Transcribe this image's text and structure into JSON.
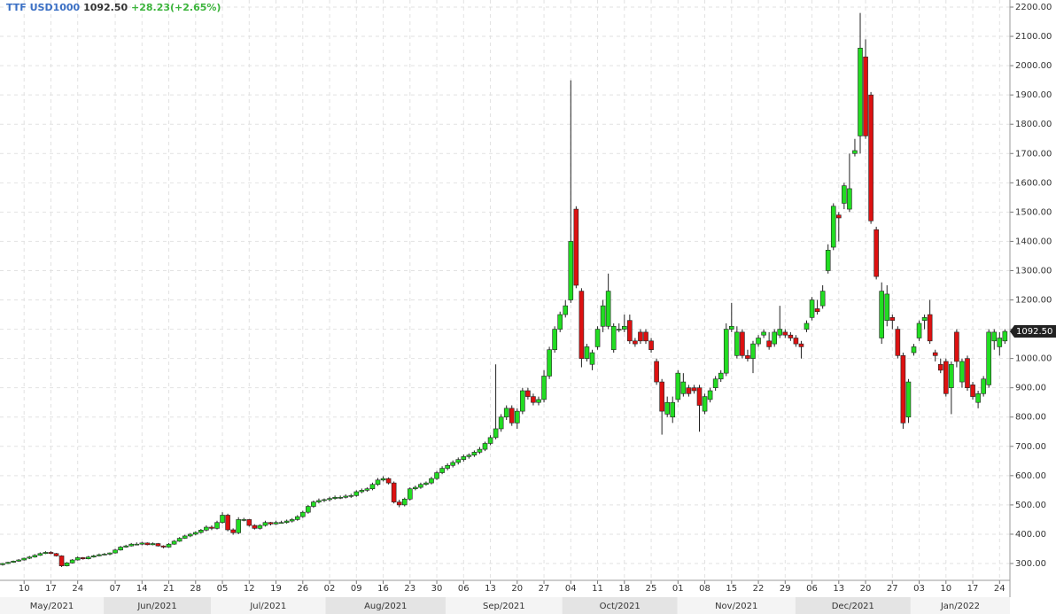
{
  "chart_data": {
    "type": "candlestick",
    "title": "TTF USD1000",
    "last_price": {
      "value": 1092.5,
      "label": "1092.50"
    },
    "change": "+28.23(+2.65%)",
    "up_color": "#22dd22",
    "down_color": "#dd1111",
    "grid": true,
    "ylim": [
      240,
      2230
    ],
    "yticks": [
      {
        "value": 300,
        "label": "300.00"
      },
      {
        "value": 400,
        "label": "400.00"
      },
      {
        "value": 500,
        "label": "500.00"
      },
      {
        "value": 600,
        "label": "600.00"
      },
      {
        "value": 700,
        "label": "700.00"
      },
      {
        "value": 800,
        "label": "800.00"
      },
      {
        "value": 900,
        "label": "900.00"
      },
      {
        "value": 1000,
        "label": "1000.00"
      },
      {
        "value": 1100,
        "label": "1100.00"
      },
      {
        "value": 1200,
        "label": "1200.00"
      },
      {
        "value": 1300,
        "label": "1300.00"
      },
      {
        "value": 1400,
        "label": "1400.00"
      },
      {
        "value": 1500,
        "label": "1500.00"
      },
      {
        "value": 1600,
        "label": "1600.00"
      },
      {
        "value": 1700,
        "label": "1700.00"
      },
      {
        "value": 1800,
        "label": "1800.00"
      },
      {
        "value": 1900,
        "label": "1900.00"
      },
      {
        "value": 2000,
        "label": "2000.00"
      },
      {
        "value": 2100,
        "label": "2100.00"
      },
      {
        "value": 2200,
        "label": "2200.00"
      }
    ],
    "xlim": [
      -0.5,
      188.5
    ],
    "xticks": [
      {
        "value": 4,
        "label": "10"
      },
      {
        "value": 9,
        "label": "17"
      },
      {
        "value": 14,
        "label": "24"
      },
      {
        "value": 21,
        "label": "07"
      },
      {
        "value": 26,
        "label": "14"
      },
      {
        "value": 31,
        "label": "21"
      },
      {
        "value": 36,
        "label": "28"
      },
      {
        "value": 41,
        "label": "05"
      },
      {
        "value": 46,
        "label": "12"
      },
      {
        "value": 51,
        "label": "19"
      },
      {
        "value": 56,
        "label": "26"
      },
      {
        "value": 61,
        "label": "02"
      },
      {
        "value": 66,
        "label": "09"
      },
      {
        "value": 71,
        "label": "16"
      },
      {
        "value": 76,
        "label": "23"
      },
      {
        "value": 81,
        "label": "30"
      },
      {
        "value": 86,
        "label": "06"
      },
      {
        "value": 91,
        "label": "13"
      },
      {
        "value": 96,
        "label": "20"
      },
      {
        "value": 101,
        "label": "27"
      },
      {
        "value": 106,
        "label": "04"
      },
      {
        "value": 111,
        "label": "11"
      },
      {
        "value": 116,
        "label": "18"
      },
      {
        "value": 121,
        "label": "25"
      },
      {
        "value": 126,
        "label": "01"
      },
      {
        "value": 131,
        "label": "08"
      },
      {
        "value": 136,
        "label": "15"
      },
      {
        "value": 141,
        "label": "22"
      },
      {
        "value": 146,
        "label": "29"
      },
      {
        "value": 151,
        "label": "06"
      },
      {
        "value": 156,
        "label": "13"
      },
      {
        "value": 161,
        "label": "20"
      },
      {
        "value": 166,
        "label": "27"
      },
      {
        "value": 171,
        "label": "03"
      },
      {
        "value": 176,
        "label": "10"
      },
      {
        "value": 181,
        "label": "17"
      },
      {
        "value": 186,
        "label": "24"
      }
    ],
    "months": [
      {
        "value": 9,
        "label": "May/2021"
      },
      {
        "value": 28.7,
        "label": "Jun/2021"
      },
      {
        "value": 49,
        "label": "Jul/2021"
      },
      {
        "value": 71.5,
        "label": "Aug/2021"
      },
      {
        "value": 93.8,
        "label": "Sep/2021"
      },
      {
        "value": 115,
        "label": "Oct/2021"
      },
      {
        "value": 136.8,
        "label": "Nov/2021"
      },
      {
        "value": 159,
        "label": "Dec/2021"
      },
      {
        "value": 179.8,
        "label": "Jan/2022"
      }
    ],
    "open": [
      296,
      300,
      304,
      308,
      312,
      318,
      322,
      328,
      334,
      338,
      334,
      326,
      292,
      302,
      312,
      320,
      316,
      322,
      326,
      330,
      332,
      336,
      346,
      356,
      360,
      366,
      366,
      370,
      364,
      368,
      360,
      356,
      366,
      376,
      386,
      394,
      400,
      406,
      414,
      424,
      420,
      440,
      465,
      415,
      405,
      450,
      450,
      430,
      420,
      430,
      440,
      435,
      440,
      440,
      445,
      450,
      460,
      475,
      495,
      510,
      515,
      518,
      522,
      526,
      526,
      530,
      532,
      545,
      550,
      555,
      570,
      585,
      590,
      575,
      510,
      500,
      520,
      555,
      560,
      570,
      575,
      590,
      610,
      625,
      635,
      645,
      655,
      665,
      670,
      680,
      690,
      710,
      730,
      760,
      800,
      830,
      780,
      820,
      890,
      870,
      850,
      860,
      940,
      1030,
      1100,
      1150,
      1200,
      1510,
      1230,
      1000,
      980,
      1040,
      1110,
      1110,
      1030,
      1100,
      1100,
      1130,
      1060,
      1090,
      1090,
      1060,
      990,
      920,
      810,
      800,
      860,
      880,
      900,
      900,
      900,
      820,
      860,
      900,
      930,
      950,
      1100,
      1010,
      1090,
      1010,
      1000,
      1050,
      1080,
      1060,
      1050,
      1080,
      1090,
      1080,
      1070,
      1050,
      1100,
      1140,
      1170,
      1180,
      1300,
      1380,
      1490,
      1530,
      1510,
      1700,
      1760,
      2030,
      1900,
      1440,
      1070,
      1130,
      1140,
      1100,
      1010,
      800,
      1020,
      1070,
      1130,
      1150,
      1020,
      980,
      990,
      900,
      1090,
      920,
      1000,
      910,
      850,
      880,
      910,
      1060,
      1040,
      1060
    ],
    "high": [
      302,
      306,
      310,
      315,
      320,
      326,
      332,
      338,
      342,
      342,
      336,
      328,
      305,
      315,
      324,
      322,
      326,
      330,
      334,
      336,
      338,
      350,
      360,
      364,
      370,
      372,
      374,
      372,
      372,
      370,
      362,
      370,
      380,
      390,
      398,
      404,
      410,
      418,
      430,
      430,
      446,
      475,
      470,
      420,
      458,
      456,
      452,
      434,
      434,
      446,
      442,
      446,
      446,
      450,
      455,
      465,
      480,
      500,
      515,
      522,
      522,
      528,
      532,
      532,
      536,
      538,
      550,
      556,
      560,
      576,
      592,
      598,
      594,
      580,
      518,
      525,
      560,
      566,
      576,
      580,
      596,
      616,
      632,
      642,
      652,
      662,
      672,
      676,
      686,
      698,
      716,
      738,
      980,
      810,
      840,
      840,
      830,
      900,
      900,
      880,
      870,
      960,
      1040,
      1110,
      1160,
      1200,
      1950,
      1520,
      1240,
      1050,
      1030,
      1110,
      1200,
      1290,
      1120,
      1120,
      1150,
      1150,
      1070,
      1100,
      1100,
      1070,
      1000,
      930,
      870,
      870,
      960,
      950,
      910,
      910,
      910,
      880,
      900,
      940,
      960,
      1120,
      1190,
      1110,
      1100,
      1030,
      1060,
      1080,
      1100,
      1090,
      1100,
      1180,
      1100,
      1090,
      1080,
      1060,
      1130,
      1210,
      1200,
      1250,
      1390,
      1530,
      1500,
      1600,
      1700,
      1750,
      2180,
      2090,
      1910,
      1450,
      1260,
      1250,
      1150,
      1110,
      1020,
      930,
      1050,
      1130,
      1150,
      1200,
      1030,
      1000,
      1000,
      990,
      1100,
      1000,
      1010,
      920,
      890,
      940,
      1100,
      1100,
      1090,
      1100
    ],
    "low": [
      293,
      298,
      302,
      306,
      310,
      315,
      320,
      326,
      332,
      332,
      324,
      288,
      290,
      300,
      310,
      313,
      314,
      320,
      324,
      328,
      328,
      334,
      344,
      354,
      358,
      362,
      362,
      362,
      362,
      358,
      352,
      354,
      364,
      374,
      384,
      390,
      396,
      402,
      410,
      414,
      416,
      436,
      410,
      398,
      400,
      444,
      426,
      416,
      416,
      426,
      430,
      432,
      436,
      436,
      440,
      446,
      456,
      470,
      490,
      505,
      510,
      512,
      518,
      520,
      522,
      524,
      528,
      540,
      545,
      550,
      565,
      580,
      570,
      505,
      492,
      495,
      515,
      550,
      555,
      566,
      570,
      585,
      605,
      618,
      628,
      638,
      648,
      658,
      664,
      674,
      684,
      704,
      724,
      750,
      790,
      770,
      760,
      810,
      860,
      840,
      840,
      850,
      930,
      1020,
      1090,
      1140,
      1190,
      1240,
      970,
      990,
      960,
      1030,
      1090,
      1100,
      1020,
      1090,
      1090,
      1050,
      1040,
      1050,
      1050,
      1020,
      910,
      740,
      800,
      780,
      850,
      870,
      870,
      880,
      750,
      810,
      850,
      890,
      920,
      940,
      1090,
      1000,
      1000,
      990,
      950,
      1040,
      1070,
      1030,
      1040,
      1070,
      1070,
      1060,
      1040,
      1000,
      1090,
      1130,
      1150,
      1170,
      1290,
      1370,
      1400,
      1510,
      1500,
      1690,
      1700,
      1750,
      1460,
      1270,
      1050,
      1110,
      1100,
      1000,
      760,
      780,
      1010,
      1060,
      1100,
      1050,
      990,
      950,
      870,
      810,
      970,
      900,
      890,
      860,
      830,
      870,
      900,
      1030,
      1010,
      1050
    ],
    "close": [
      300,
      304,
      308,
      312,
      318,
      322,
      328,
      334,
      338,
      334,
      326,
      292,
      302,
      312,
      320,
      316,
      322,
      326,
      330,
      332,
      336,
      346,
      356,
      360,
      366,
      366,
      370,
      364,
      368,
      360,
      356,
      366,
      376,
      386,
      394,
      400,
      406,
      414,
      424,
      420,
      440,
      465,
      415,
      405,
      450,
      450,
      430,
      420,
      430,
      440,
      435,
      440,
      440,
      445,
      450,
      460,
      475,
      495,
      510,
      515,
      518,
      522,
      526,
      526,
      530,
      532,
      545,
      550,
      555,
      570,
      585,
      590,
      575,
      510,
      500,
      520,
      555,
      560,
      570,
      575,
      590,
      610,
      625,
      635,
      645,
      655,
      665,
      670,
      680,
      690,
      710,
      730,
      760,
      800,
      830,
      780,
      820,
      890,
      870,
      850,
      860,
      940,
      1030,
      1100,
      1150,
      1180,
      1400,
      1250,
      1000,
      1040,
      1020,
      1100,
      1180,
      1230,
      1110,
      1100,
      1110,
      1060,
      1050,
      1060,
      1060,
      1030,
      920,
      820,
      850,
      850,
      950,
      920,
      880,
      890,
      840,
      870,
      890,
      930,
      950,
      1100,
      1110,
      1090,
      1010,
      1000,
      1050,
      1070,
      1090,
      1040,
      1090,
      1100,
      1080,
      1070,
      1050,
      1040,
      1120,
      1200,
      1160,
      1230,
      1370,
      1520,
      1480,
      1590,
      1580,
      1710,
      2060,
      1760,
      1470,
      1280,
      1230,
      1220,
      1130,
      1010,
      780,
      920,
      1040,
      1120,
      1140,
      1060,
      1010,
      960,
      880,
      980,
      990,
      990,
      900,
      870,
      880,
      930,
      1090,
      1090,
      1070,
      1092.5
    ]
  }
}
